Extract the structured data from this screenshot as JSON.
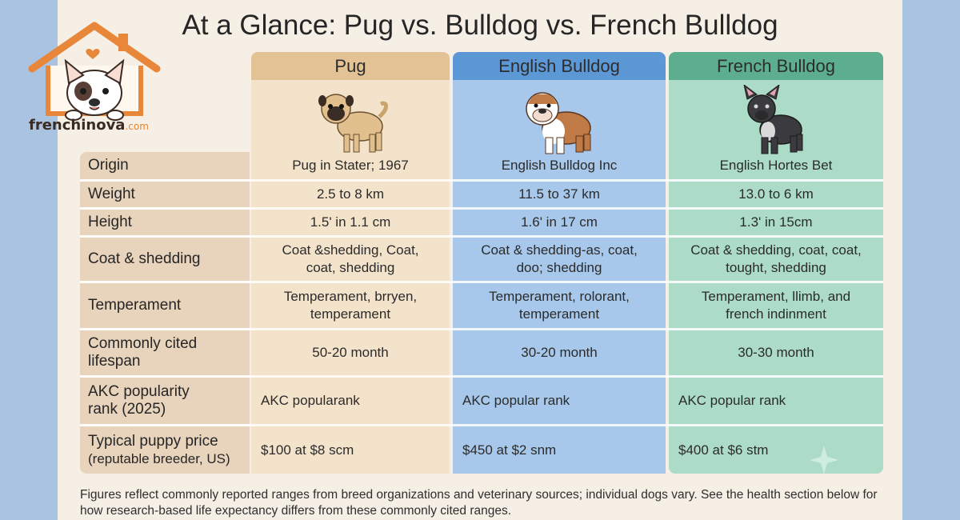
{
  "title": "At a Glance: Pug vs. Bulldog vs. French Bulldog",
  "logo": {
    "name": "frenchinova",
    "domain": ".com"
  },
  "columns": [
    {
      "name": "Pug",
      "color": "#e3c396",
      "bg": "#f4e3cb"
    },
    {
      "name": "English Bulldog",
      "color": "#5d98d6",
      "bg": "#a7c8ea"
    },
    {
      "name": "French Bulldog",
      "color": "#5cae8e",
      "bg": "#acdcc7"
    }
  ],
  "rows": [
    {
      "label": "Origin",
      "values": [
        "Pug in Stater; 1967",
        "English Bulldog Inc",
        "English Hortes Bet"
      ]
    },
    {
      "label": "Weight",
      "values": [
        "2.5 to 8 km",
        "11.5 to 37 km",
        "13.0 to 6 km"
      ]
    },
    {
      "label": "Height",
      "values": [
        "1.5' in 1.1 cm",
        "1.6' in 17 cm",
        "1.3' in 15cm"
      ]
    },
    {
      "label": "Coat & shedding",
      "values": [
        "Coat &shedding, Coat, coat, shedding",
        "Coat & shedding-as, coat, doo; shedding",
        "Coat & shedding, coat, coat, tought, shedding"
      ]
    },
    {
      "label": "Temperament",
      "values": [
        "Temperament, brryen, temperament",
        "Temperament, rolorant, temperament",
        "Temperament, llimb, and french indinment"
      ]
    },
    {
      "label": "Commonly cited lifespan",
      "values": [
        "50-20 month",
        "30-20 month",
        "30-30 month"
      ]
    },
    {
      "label": "AKC popularity rank (2025)",
      "values": [
        "AKC popularank",
        "AKC popular rank",
        "AKC popular rank"
      ]
    },
    {
      "label": "Typical puppy price",
      "sublabel": "(reputable breeder, US)",
      "values": [
        "$100 at $8 scm",
        "$450 at $2 snm",
        "$400 at $6 stm"
      ]
    }
  ],
  "footnote": "Figures reflect commonly reported ranges from breed organizations and veterinary sources; individual dogs vary. See the health section below for how research-based life expectancy differs from these commonly cited ranges.",
  "icons": [
    "house-logo-icon",
    "pug-illustration",
    "english-bulldog-illustration",
    "french-bulldog-illustration",
    "sparkle-icon"
  ]
}
